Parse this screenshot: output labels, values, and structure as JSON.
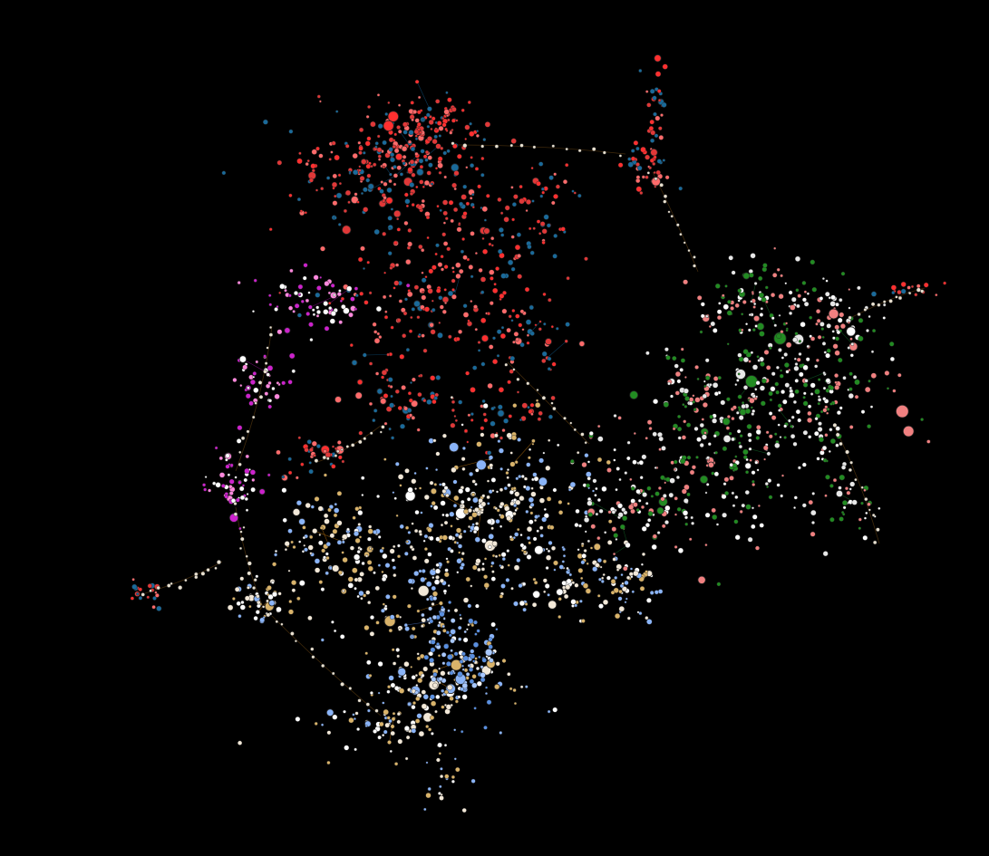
{
  "image": {
    "kind": "network-graph-visualization",
    "background_color": "#000000",
    "layout": "force-directed",
    "clusters": [
      {
        "name": "red-blue-cluster",
        "node_colors": [
          "#ff3030",
          "#e03838",
          "#ff6b6b",
          "#1a6a9a"
        ],
        "edge_color": "#0d4a73"
      },
      {
        "name": "magenta-cluster",
        "node_colors": [
          "#cc22cc",
          "#ffffff",
          "#ff88dd"
        ],
        "edge_color": "#7a0a7a"
      },
      {
        "name": "orange-white-cluster",
        "node_colors": [
          "#f2e8d8",
          "#ffffff",
          "#d9b36a",
          "#8ab4f8"
        ],
        "edge_color": "#a0620a"
      },
      {
        "name": "green-pink-cluster",
        "node_colors": [
          "#f08080",
          "#ffffff",
          "#e8e8e8",
          "#228b22"
        ],
        "edge_color": "#0f5a22"
      },
      {
        "name": "blue-subcluster",
        "node_colors": [
          "#5a8fe0",
          "#a8c8ff"
        ],
        "edge_color": "#3a5a9a"
      }
    ]
  }
}
